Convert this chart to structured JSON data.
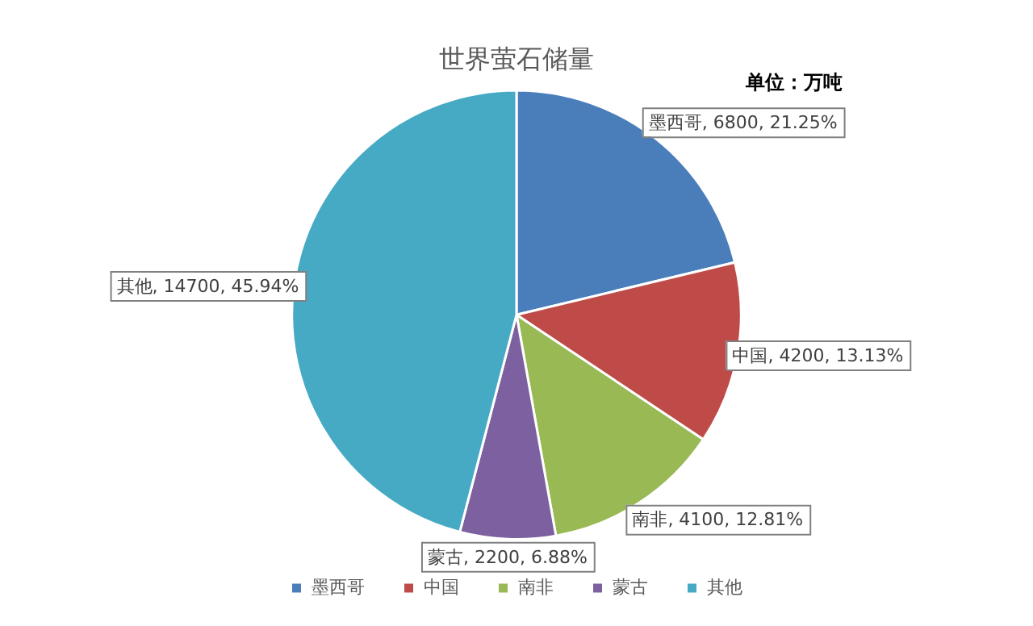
{
  "chart_data": {
    "type": "pie",
    "title": "世界萤石储量",
    "annotations": [
      "单位：万吨"
    ],
    "categories": [
      "墨西哥",
      "中国",
      "南非",
      "蒙古",
      "其他"
    ],
    "values": [
      6800,
      4200,
      4100,
      2200,
      14700
    ],
    "value_labels": [
      "墨西哥, 6800, 21.25%",
      "中国, 4200, 13.13%",
      "南非, 4100, 12.81%",
      "蒙古, 2200, 6.88%",
      "其他, 14700, 45.94%"
    ],
    "colors": [
      "#4a7ebb",
      "#be4b48",
      "#98b954",
      "#7d60a0",
      "#46aac5"
    ],
    "legend": "bottom"
  }
}
